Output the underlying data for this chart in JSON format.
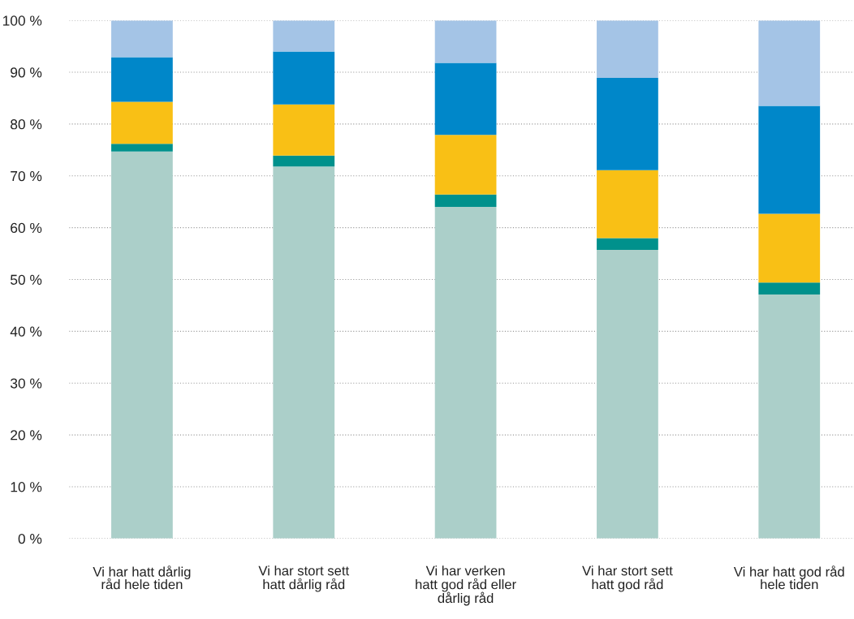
{
  "chart_data": {
    "type": "bar",
    "stacked": true,
    "categories": [
      "Vi har hatt dårlig\nråd hele tiden",
      "Vi har stort sett\nhatt dårlig råd",
      "Vi har verken\nhatt god råd eller\ndårlig råd",
      "Vi har stort sett\nhatt god råd",
      "Vi har hatt god råd\nhele tiden"
    ],
    "series": [
      {
        "color": "#abcfc9",
        "values": [
          74.7,
          71.8,
          64.0,
          55.7,
          47.1
        ]
      },
      {
        "color": "#00918c",
        "values": [
          1.5,
          2.1,
          2.4,
          2.3,
          2.3
        ]
      },
      {
        "color": "#f9c015",
        "values": [
          8.1,
          9.9,
          11.5,
          13.1,
          13.3
        ]
      },
      {
        "color": "#0087c9",
        "values": [
          8.6,
          10.2,
          13.9,
          17.8,
          20.8
        ]
      },
      {
        "color": "#a4c4e6",
        "values": [
          7.1,
          6.0,
          8.2,
          11.1,
          16.5
        ]
      }
    ],
    "ylim": [
      0,
      100
    ],
    "yticks": [
      {
        "value": 0,
        "label": "0 %"
      },
      {
        "value": 10,
        "label": "10 %"
      },
      {
        "value": 20,
        "label": "20 %"
      },
      {
        "value": 30,
        "label": "30 %"
      },
      {
        "value": 40,
        "label": "40 %"
      },
      {
        "value": 50,
        "label": "50 %"
      },
      {
        "value": 60,
        "label": "60 %"
      },
      {
        "value": 70,
        "label": "70 %"
      },
      {
        "value": 80,
        "label": "80 %"
      },
      {
        "value": 90,
        "label": "90 %"
      },
      {
        "value": 100,
        "label": "100 %"
      }
    ],
    "grid": "y"
  }
}
